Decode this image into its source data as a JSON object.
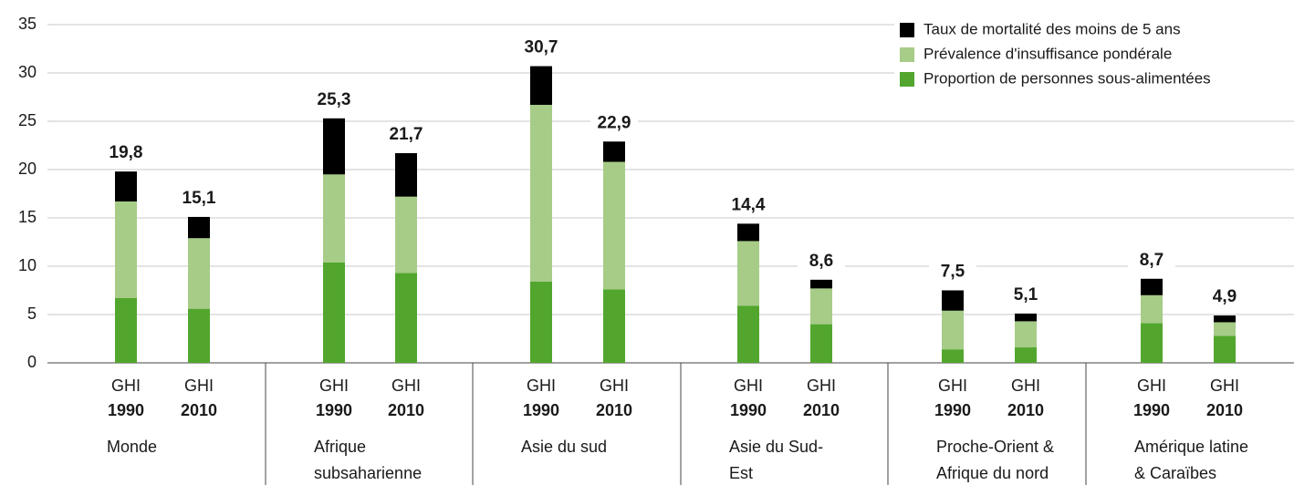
{
  "chart_data": {
    "type": "stacked-bar",
    "category_prefix": "GHI",
    "categories": [
      "1990",
      "2010",
      "1990",
      "2010",
      "1990",
      "2010",
      "1990",
      "2010",
      "1990",
      "2010",
      "1990",
      "2010"
    ],
    "groups": [
      [
        "Monde"
      ],
      [
        "Afrique",
        "subsaharienne"
      ],
      [
        "Asie du sud"
      ],
      [
        "Asie du Sud-",
        "Est"
      ],
      [
        "Proche-Orient &",
        "Afrique du nord"
      ],
      [
        "Amérique latine",
        "& Caraïbes"
      ]
    ],
    "series": [
      {
        "name": "Proportion de personnes sous-alimentées",
        "color": "#52a62e",
        "values": [
          6.7,
          5.6,
          10.4,
          9.3,
          8.4,
          7.6,
          5.9,
          4.0,
          1.4,
          1.6,
          4.1,
          2.8
        ]
      },
      {
        "name": "Prévalence d'insuffisance pondérale",
        "color": "#a6cc87",
        "values": [
          10.0,
          7.3,
          9.1,
          7.9,
          18.3,
          13.2,
          6.7,
          3.7,
          4.0,
          2.7,
          2.9,
          1.4
        ]
      },
      {
        "name": "Taux de mortalité des moins de 5 ans",
        "color": "#000000",
        "values": [
          3.1,
          2.2,
          5.8,
          4.5,
          4.0,
          2.1,
          1.8,
          0.9,
          2.1,
          0.8,
          1.7,
          0.7
        ]
      }
    ],
    "totals": [
      19.8,
      15.1,
      25.3,
      21.7,
      30.7,
      22.9,
      14.4,
      8.6,
      7.5,
      5.1,
      8.7,
      4.9
    ],
    "total_labels": [
      "19,8",
      "15,1",
      "25,3",
      "21,7",
      "30,7",
      "22,9",
      "14,4",
      "8,6",
      "7,5",
      "5,1",
      "8,7",
      "4,9"
    ],
    "ylim": [
      0,
      35
    ],
    "yticks": [
      0,
      5,
      10,
      15,
      20,
      25,
      30,
      35
    ],
    "grid": true,
    "legend": "top-right"
  }
}
